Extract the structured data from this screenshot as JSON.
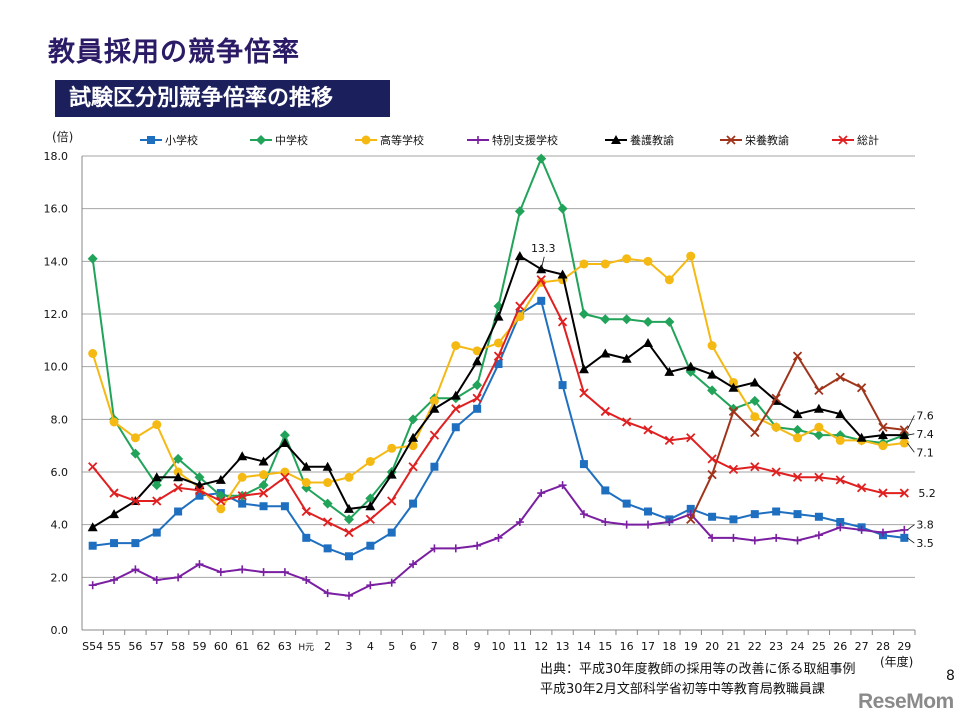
{
  "title": "教員採用の競争倍率",
  "subtitle": "試験区分別競争倍率の推移",
  "source_lines": [
    "出典：平成30年度教師の採用等の改善に係る取組事例",
    "平成30年2月文部科学省初等中等教育局教職員課"
  ],
  "page_number": "8",
  "logo_text": "ReseMom",
  "chart_data": {
    "type": "line",
    "ylabel": "(倍)",
    "xlabel": "(年度)",
    "ylim": [
      0,
      18
    ],
    "yticks": [
      "0.0",
      "2.0",
      "4.0",
      "6.0",
      "8.0",
      "10.0",
      "12.0",
      "14.0",
      "16.0",
      "18.0"
    ],
    "grid": true,
    "legend_position": "top",
    "categories": [
      "S54",
      "55",
      "56",
      "57",
      "58",
      "59",
      "60",
      "61",
      "62",
      "63",
      "H元",
      "2",
      "3",
      "4",
      "5",
      "6",
      "7",
      "8",
      "9",
      "10",
      "11",
      "12",
      "13",
      "14",
      "15",
      "16",
      "17",
      "18",
      "19",
      "20",
      "21",
      "22",
      "23",
      "24",
      "25",
      "26",
      "27",
      "28",
      "29"
    ],
    "series": [
      {
        "name": "小学校",
        "color": "#1f6fc0",
        "marker": "square",
        "values": [
          3.2,
          3.3,
          3.3,
          3.7,
          4.5,
          5.1,
          5.2,
          4.8,
          4.7,
          4.7,
          3.5,
          3.1,
          2.8,
          3.2,
          3.7,
          4.8,
          6.2,
          7.7,
          8.4,
          10.1,
          12.0,
          12.5,
          9.3,
          6.3,
          5.3,
          4.8,
          4.5,
          4.2,
          4.6,
          4.3,
          4.2,
          4.4,
          4.5,
          4.4,
          4.3,
          4.1,
          3.9,
          3.6,
          3.5
        ]
      },
      {
        "name": "中学校",
        "color": "#21a35a",
        "marker": "diamond",
        "values": [
          14.1,
          8.0,
          6.7,
          5.5,
          6.5,
          5.8,
          5.1,
          5.1,
          5.5,
          7.4,
          5.4,
          4.8,
          4.2,
          5.0,
          6.0,
          8.0,
          8.8,
          8.8,
          9.3,
          12.3,
          15.9,
          17.9,
          16.0,
          12.0,
          11.8,
          11.8,
          11.7,
          11.7,
          9.8,
          9.1,
          8.4,
          8.7,
          7.7,
          7.6,
          7.4,
          7.4,
          7.2,
          7.1,
          7.4
        ]
      },
      {
        "name": "高等学校",
        "color": "#f5b914",
        "marker": "circle",
        "values": [
          10.5,
          7.9,
          7.3,
          7.8,
          6.0,
          5.4,
          4.6,
          5.8,
          5.9,
          6.0,
          5.6,
          5.6,
          5.8,
          6.4,
          6.9,
          7.0,
          8.7,
          10.8,
          10.6,
          10.9,
          11.9,
          13.2,
          13.3,
          13.9,
          13.9,
          14.1,
          14.0,
          13.3,
          14.2,
          10.8,
          9.4,
          8.1,
          7.7,
          7.3,
          7.7,
          7.2,
          7.2,
          7.0,
          7.1
        ]
      },
      {
        "name": "特別支援学校",
        "color": "#7a1fa2",
        "marker": "plus",
        "values": [
          1.7,
          1.9,
          2.3,
          1.9,
          2.0,
          2.5,
          2.2,
          2.3,
          2.2,
          2.2,
          1.9,
          1.4,
          1.3,
          1.7,
          1.8,
          2.5,
          3.1,
          3.1,
          3.2,
          3.5,
          4.1,
          5.2,
          5.5,
          4.4,
          4.1,
          4.0,
          4.0,
          4.1,
          4.4,
          3.5,
          3.5,
          3.4,
          3.5,
          3.4,
          3.6,
          3.9,
          3.8,
          3.7,
          3.8
        ]
      },
      {
        "name": "養護教諭",
        "color": "#000000",
        "marker": "triangle",
        "values": [
          3.9,
          4.4,
          4.9,
          5.8,
          5.8,
          5.5,
          5.7,
          6.6,
          6.4,
          7.1,
          6.2,
          6.2,
          4.6,
          4.7,
          5.9,
          7.3,
          8.4,
          8.9,
          10.2,
          11.9,
          14.2,
          13.7,
          13.5,
          9.9,
          10.5,
          10.3,
          10.9,
          9.8,
          10.0,
          9.7,
          9.2,
          9.4,
          8.7,
          8.2,
          8.4,
          8.2,
          7.3,
          7.4,
          7.4
        ]
      },
      {
        "name": "栄養教諭",
        "color": "#a0341b",
        "marker": "x",
        "values": [
          null,
          null,
          null,
          null,
          null,
          null,
          null,
          null,
          null,
          null,
          null,
          null,
          null,
          null,
          null,
          null,
          null,
          null,
          null,
          null,
          null,
          null,
          null,
          null,
          null,
          null,
          null,
          null,
          4.2,
          5.9,
          8.3,
          7.5,
          8.8,
          10.4,
          9.1,
          9.6,
          9.2,
          7.7,
          7.6
        ]
      },
      {
        "name": "総計",
        "color": "#e02020",
        "marker": "x",
        "values": [
          6.2,
          5.2,
          4.9,
          4.9,
          5.4,
          5.3,
          4.9,
          5.1,
          5.2,
          5.8,
          4.5,
          4.1,
          3.7,
          4.2,
          4.9,
          6.2,
          7.4,
          8.4,
          8.8,
          10.4,
          12.3,
          13.3,
          11.7,
          9.0,
          8.3,
          7.9,
          7.6,
          7.2,
          7.3,
          6.5,
          6.1,
          6.2,
          6.0,
          5.8,
          5.8,
          5.7,
          5.4,
          5.2,
          5.2
        ]
      }
    ],
    "annotations": [
      {
        "text": "13.3",
        "category": "12"
      },
      {
        "text": "7.6",
        "category": "29"
      },
      {
        "text": "7.4",
        "category": "29"
      },
      {
        "text": "7.1",
        "category": "29"
      },
      {
        "text": "5.2",
        "category": "29"
      },
      {
        "text": "3.8",
        "category": "29"
      },
      {
        "text": "3.5",
        "category": "29"
      }
    ]
  }
}
